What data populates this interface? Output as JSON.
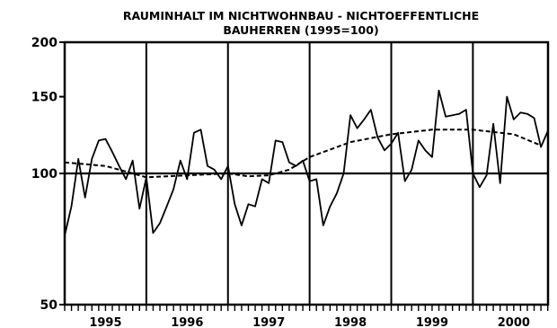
{
  "chart_data": {
    "type": "line",
    "title_lines": [
      "RAUMINHALT IM NICHTWOHNBAU - NICHTOEFFENTLICHE",
      "BAUHERREN (1995=100)"
    ],
    "xlabel": "",
    "ylabel": "",
    "y_scale": "log",
    "ylim": [
      50,
      200
    ],
    "yticks": [
      50,
      100,
      150,
      200
    ],
    "reference_line": 100,
    "x_categories": [
      "1995",
      "1996",
      "1997",
      "1998",
      "1999",
      "2000"
    ],
    "x_range": [
      1995.0,
      2000.92
    ],
    "series": [
      {
        "style": "solid",
        "x": [
          1995.0,
          1995.083,
          1995.167,
          1995.25,
          1995.333,
          1995.417,
          1995.5,
          1995.583,
          1995.667,
          1995.75,
          1995.833,
          1995.917,
          1996.0,
          1996.083,
          1996.167,
          1996.25,
          1996.333,
          1996.417,
          1996.5,
          1996.583,
          1996.667,
          1996.75,
          1996.833,
          1996.917,
          1997.0,
          1997.083,
          1997.167,
          1997.25,
          1997.333,
          1997.417,
          1997.5,
          1997.583,
          1997.667,
          1997.75,
          1997.833,
          1997.917,
          1998.0,
          1998.083,
          1998.167,
          1998.25,
          1998.333,
          1998.417,
          1998.5,
          1998.583,
          1998.667,
          1998.75,
          1998.833,
          1998.917,
          1999.0,
          1999.083,
          1999.167,
          1999.25,
          1999.333,
          1999.417,
          1999.5,
          1999.583,
          1999.667,
          1999.75,
          1999.833,
          1999.917,
          2000.0,
          2000.083,
          2000.167,
          2000.25,
          2000.333,
          2000.417,
          2000.5,
          2000.583,
          2000.667,
          2000.75,
          2000.833,
          2000.917
        ],
        "values": [
          72,
          84,
          108,
          88,
          108,
          119,
          120,
          112,
          104,
          97,
          107,
          83,
          98,
          73,
          77,
          84,
          92,
          107,
          97,
          124,
          126,
          104,
          102,
          97,
          104,
          85,
          76,
          85,
          84,
          97,
          95,
          119,
          118,
          106,
          104,
          107,
          96,
          97,
          76,
          84,
          90,
          100,
          136,
          127,
          133,
          140,
          121,
          113,
          117,
          124,
          96,
          102,
          119,
          113,
          109,
          155,
          135,
          136,
          137,
          140,
          100,
          93,
          99,
          130,
          95,
          150,
          133,
          138,
          137,
          134,
          115,
          125
        ]
      },
      {
        "style": "dashed",
        "x": [
          1995.0,
          1995.5,
          1995.75,
          1996.0,
          1996.5,
          1997.0,
          1997.25,
          1997.5,
          1997.75,
          1998.0,
          1998.5,
          1999.0,
          1999.5,
          2000.0,
          2000.5,
          2000.83
        ],
        "values": [
          106,
          104,
          101,
          98,
          99,
          100,
          98.5,
          99,
          102,
          109,
          118,
          123,
          126,
          126,
          123,
          116
        ]
      }
    ]
  }
}
